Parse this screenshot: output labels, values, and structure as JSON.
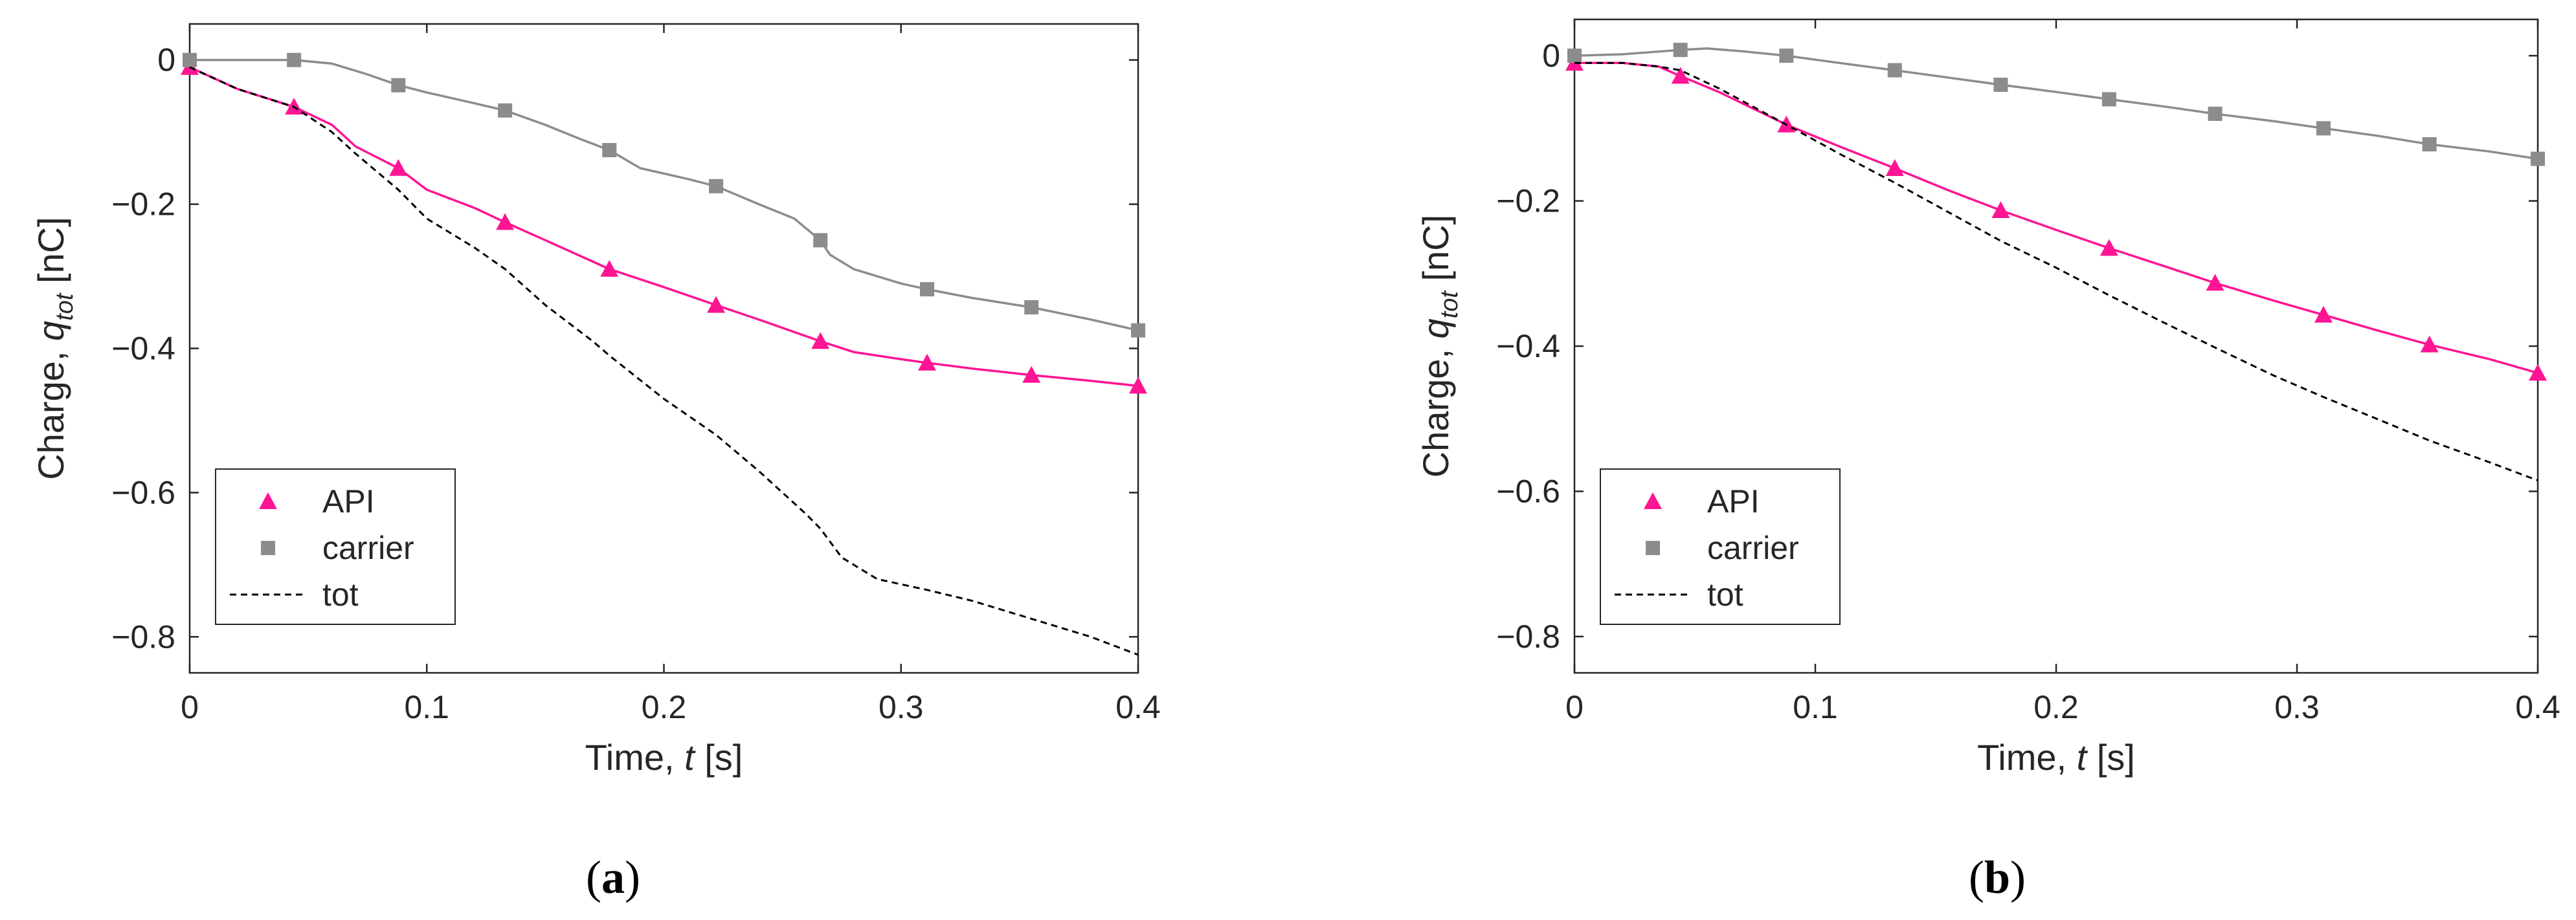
{
  "chart_data": [
    {
      "type": "line",
      "panel_label_open": "(",
      "panel_label_letter": "a",
      "panel_label_close": ")",
      "ylabel_prefix": "Charge, ",
      "ylabel_var": "q",
      "ylabel_sub": "tot",
      "ylabel_unit": " [nC]",
      "xlabel_prefix": "Time, ",
      "xlabel_var": "t",
      "xlabel_unit": " [s]",
      "xlim": [
        0,
        0.4
      ],
      "ylim": [
        -0.85,
        0.05
      ],
      "xticks": [
        0,
        0.1,
        0.2,
        0.3,
        0.4
      ],
      "xtick_labels": [
        "0",
        "0.1",
        "0.2",
        "0.3",
        "0.4"
      ],
      "yticks": [
        0,
        -0.2,
        -0.4,
        -0.6,
        -0.8
      ],
      "ytick_labels": [
        "0",
        "−0.2",
        "−0.4",
        "−0.6",
        "−0.8"
      ],
      "legend_position": "bottom-left",
      "series": [
        {
          "name": "API",
          "color": "#ff1493",
          "marker": "triangle",
          "dash": "solid",
          "x": [
            0,
            0.02,
            0.044,
            0.06,
            0.07,
            0.088,
            0.1,
            0.12,
            0.133,
            0.15,
            0.177,
            0.2,
            0.222,
            0.24,
            0.266,
            0.28,
            0.3,
            0.311,
            0.33,
            0.355,
            0.38,
            0.4
          ],
          "y": [
            -0.01,
            -0.04,
            -0.065,
            -0.09,
            -0.12,
            -0.15,
            -0.18,
            -0.205,
            -0.225,
            -0.25,
            -0.29,
            -0.315,
            -0.34,
            -0.36,
            -0.39,
            -0.405,
            -0.415,
            -0.42,
            -0.428,
            -0.437,
            -0.445,
            -0.452
          ],
          "marker_x": [
            0,
            0.044,
            0.088,
            0.133,
            0.177,
            0.222,
            0.266,
            0.311,
            0.355,
            0.4
          ],
          "marker_y": [
            -0.01,
            -0.065,
            -0.15,
            -0.225,
            -0.29,
            -0.34,
            -0.39,
            -0.42,
            -0.437,
            -0.452
          ]
        },
        {
          "name": "carrier",
          "color": "#8c8c8c",
          "marker": "square",
          "dash": "solid",
          "x": [
            0,
            0.02,
            0.044,
            0.06,
            0.075,
            0.088,
            0.1,
            0.12,
            0.133,
            0.15,
            0.165,
            0.177,
            0.19,
            0.21,
            0.222,
            0.24,
            0.255,
            0.266,
            0.27,
            0.28,
            0.3,
            0.311,
            0.33,
            0.355,
            0.38,
            0.4
          ],
          "y": [
            0,
            0,
            0,
            -0.005,
            -0.02,
            -0.035,
            -0.045,
            -0.06,
            -0.07,
            -0.09,
            -0.11,
            -0.125,
            -0.15,
            -0.165,
            -0.175,
            -0.2,
            -0.22,
            -0.25,
            -0.27,
            -0.29,
            -0.31,
            -0.318,
            -0.33,
            -0.343,
            -0.36,
            -0.375
          ],
          "marker_x": [
            0,
            0.044,
            0.088,
            0.133,
            0.177,
            0.222,
            0.266,
            0.311,
            0.355,
            0.4
          ],
          "marker_y": [
            0,
            0,
            -0.035,
            -0.07,
            -0.125,
            -0.175,
            -0.25,
            -0.318,
            -0.343,
            -0.375
          ]
        },
        {
          "name": "tot",
          "color": "#000000",
          "marker": "none",
          "dash": "dashed",
          "x": [
            0,
            0.02,
            0.044,
            0.06,
            0.07,
            0.088,
            0.1,
            0.12,
            0.133,
            0.15,
            0.17,
            0.177,
            0.2,
            0.222,
            0.24,
            0.26,
            0.266,
            0.275,
            0.29,
            0.311,
            0.33,
            0.355,
            0.38,
            0.4
          ],
          "y": [
            -0.01,
            -0.04,
            -0.065,
            -0.1,
            -0.13,
            -0.18,
            -0.22,
            -0.26,
            -0.29,
            -0.34,
            -0.39,
            -0.41,
            -0.47,
            -0.52,
            -0.57,
            -0.63,
            -0.65,
            -0.69,
            -0.72,
            -0.735,
            -0.75,
            -0.775,
            -0.8,
            -0.825
          ]
        }
      ]
    },
    {
      "type": "line",
      "panel_label_open": "(",
      "panel_label_letter": "b",
      "panel_label_close": ")",
      "ylabel_prefix": "Charge, ",
      "ylabel_var": "q",
      "ylabel_sub": "tot",
      "ylabel_unit": " [nC]",
      "xlabel_prefix": "Time, ",
      "xlabel_var": "t",
      "xlabel_unit": " [s]",
      "xlim": [
        0,
        0.4
      ],
      "ylim": [
        -0.85,
        0.05
      ],
      "xticks": [
        0,
        0.1,
        0.2,
        0.3,
        0.4
      ],
      "xtick_labels": [
        "0",
        "0.1",
        "0.2",
        "0.3",
        "0.4"
      ],
      "yticks": [
        0,
        -0.2,
        -0.4,
        -0.6,
        -0.8
      ],
      "ytick_labels": [
        "0",
        "−0.2",
        "−0.4",
        "−0.6",
        "−0.8"
      ],
      "legend_position": "bottom-left",
      "series": [
        {
          "name": "API",
          "color": "#ff1493",
          "marker": "triangle",
          "dash": "solid",
          "x": [
            0,
            0.02,
            0.035,
            0.044,
            0.06,
            0.088,
            0.11,
            0.133,
            0.155,
            0.177,
            0.2,
            0.222,
            0.245,
            0.266,
            0.29,
            0.311,
            0.333,
            0.355,
            0.38,
            0.4
          ],
          "y": [
            -0.01,
            -0.01,
            -0.015,
            -0.028,
            -0.05,
            -0.095,
            -0.125,
            -0.155,
            -0.185,
            -0.213,
            -0.24,
            -0.265,
            -0.29,
            -0.313,
            -0.337,
            -0.357,
            -0.378,
            -0.398,
            -0.418,
            -0.437
          ],
          "marker_x": [
            0,
            0.044,
            0.088,
            0.133,
            0.177,
            0.222,
            0.266,
            0.311,
            0.355,
            0.4
          ],
          "marker_y": [
            -0.01,
            -0.028,
            -0.095,
            -0.155,
            -0.213,
            -0.265,
            -0.313,
            -0.357,
            -0.398,
            -0.437
          ]
        },
        {
          "name": "carrier",
          "color": "#8c8c8c",
          "marker": "square",
          "dash": "solid",
          "x": [
            0,
            0.02,
            0.044,
            0.055,
            0.07,
            0.088,
            0.11,
            0.133,
            0.155,
            0.177,
            0.2,
            0.222,
            0.245,
            0.266,
            0.29,
            0.311,
            0.333,
            0.355,
            0.38,
            0.4
          ],
          "y": [
            0,
            0.002,
            0.008,
            0.01,
            0.006,
            0,
            -0.01,
            -0.02,
            -0.03,
            -0.04,
            -0.05,
            -0.06,
            -0.07,
            -0.08,
            -0.09,
            -0.1,
            -0.11,
            -0.122,
            -0.132,
            -0.142
          ],
          "marker_x": [
            0,
            0.044,
            0.088,
            0.133,
            0.177,
            0.222,
            0.266,
            0.311,
            0.355,
            0.4
          ],
          "marker_y": [
            0,
            0.008,
            0,
            -0.02,
            -0.04,
            -0.06,
            -0.08,
            -0.1,
            -0.122,
            -0.142
          ]
        },
        {
          "name": "tot",
          "color": "#000000",
          "marker": "none",
          "dash": "dashed",
          "x": [
            0,
            0.02,
            0.035,
            0.044,
            0.06,
            0.088,
            0.11,
            0.133,
            0.155,
            0.177,
            0.2,
            0.222,
            0.245,
            0.266,
            0.29,
            0.311,
            0.333,
            0.355,
            0.38,
            0.4
          ],
          "y": [
            -0.01,
            -0.01,
            -0.015,
            -0.02,
            -0.045,
            -0.095,
            -0.135,
            -0.175,
            -0.215,
            -0.255,
            -0.292,
            -0.33,
            -0.368,
            -0.402,
            -0.44,
            -0.47,
            -0.5,
            -0.53,
            -0.56,
            -0.585
          ]
        }
      ]
    }
  ]
}
